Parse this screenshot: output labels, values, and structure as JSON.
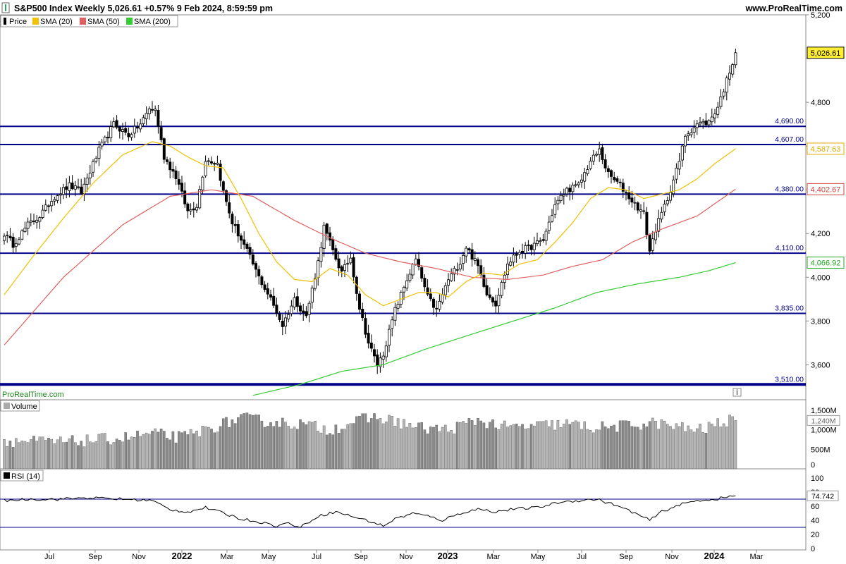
{
  "header": {
    "title": "S&P500 Index Weekly 5,026.61 +0.57% 9 Feb 2024, 8:59:59 pm",
    "site": "www.ProRealTime.com",
    "watermark": "ProRealTime.com"
  },
  "legend": [
    {
      "label": "Price",
      "color": "#000000"
    },
    {
      "label": "SMA (20)",
      "color": "#f5c000"
    },
    {
      "label": "SMA (50)",
      "color": "#e06060"
    },
    {
      "label": "SMA (200)",
      "color": "#33cc33"
    }
  ],
  "panels": {
    "volume_label": "Volume",
    "rsi_label": "RSI (14)"
  },
  "colors": {
    "level_line": "#00008b",
    "sma20": "#f0c000",
    "sma50": "#e06060",
    "sma200": "#33cc33",
    "bull_body": "#ffffff",
    "bear_body": "#000000",
    "volume_bar": "#b4b4b4",
    "volume_bar_dark": "#8a8a8a"
  },
  "chart_data": [
    {
      "type": "candlestick",
      "title": "S&P500 Index Weekly",
      "period": "Weekly",
      "x_tick_labels": [
        "Jul",
        "Sep",
        "Nov",
        "2022",
        "Mar",
        "May",
        "Jul",
        "Sep",
        "Nov",
        "2023",
        "Mar",
        "May",
        "Jul",
        "Sep",
        "Nov",
        "2024",
        "Mar"
      ],
      "x_tick_bold": [
        "2022",
        "2023",
        "2024"
      ],
      "y_ticks": [
        3600,
        3800,
        4000,
        4200,
        4400,
        4600,
        4800,
        5000,
        5200
      ],
      "y_tick_labels": [
        "3,600",
        "3,800",
        "4,000",
        "4,200",
        "",
        "",
        "4,800",
        "",
        "5,200"
      ],
      "ylim": [
        3440,
        5200
      ],
      "horizontal_levels": [
        {
          "value": 4690,
          "label": "4,690.00"
        },
        {
          "value": 4607,
          "label": "4,607.00"
        },
        {
          "value": 4380,
          "label": "4,380.00"
        },
        {
          "value": 4110,
          "label": "4,110.00"
        },
        {
          "value": 3835,
          "label": "3,835.00"
        },
        {
          "value": 3510,
          "label": "3,510.00",
          "thick": true
        }
      ],
      "badges": [
        {
          "value": 5026.61,
          "label": "5,026.61",
          "fill": "#ffee33",
          "color": "#000000"
        },
        {
          "value": 4587.63,
          "label": "4,587.63",
          "fill": "#ffffff",
          "color": "#e0a800"
        },
        {
          "value": 4402.67,
          "label": "4,402.67",
          "fill": "#ffffff",
          "color": "#d04040"
        },
        {
          "value": 4066.92,
          "label": "4,066.92",
          "fill": "#ffffff",
          "color": "#22aa22"
        }
      ],
      "close_anchors": [
        [
          0,
          4200
        ],
        [
          3,
          4150
        ],
        [
          8,
          4240
        ],
        [
          12,
          4280
        ],
        [
          17,
          4370
        ],
        [
          22,
          4420
        ],
        [
          26,
          4390
        ],
        [
          32,
          4580
        ],
        [
          37,
          4700
        ],
        [
          42,
          4650
        ],
        [
          46,
          4700
        ],
        [
          49,
          4770
        ],
        [
          51,
          4766
        ],
        [
          54,
          4550
        ],
        [
          58,
          4460
        ],
        [
          62,
          4300
        ],
        [
          65,
          4330
        ],
        [
          68,
          4540
        ],
        [
          72,
          4520
        ],
        [
          74,
          4390
        ],
        [
          77,
          4250
        ],
        [
          82,
          4120
        ],
        [
          86,
          4000
        ],
        [
          90,
          3900
        ],
        [
          94,
          3780
        ],
        [
          98,
          3900
        ],
        [
          102,
          3820
        ],
        [
          106,
          4070
        ],
        [
          108,
          4230
        ],
        [
          111,
          4120
        ],
        [
          114,
          4020
        ],
        [
          117,
          4090
        ],
        [
          120,
          3860
        ],
        [
          123,
          3700
        ],
        [
          126,
          3600
        ],
        [
          128,
          3650
        ],
        [
          132,
          3850
        ],
        [
          136,
          3990
        ],
        [
          139,
          4080
        ],
        [
          143,
          3910
        ],
        [
          146,
          3850
        ],
        [
          150,
          3990
        ],
        [
          154,
          4070
        ],
        [
          156,
          4140
        ],
        [
          160,
          4050
        ],
        [
          163,
          3930
        ],
        [
          166,
          3880
        ],
        [
          170,
          4060
        ],
        [
          174,
          4120
        ],
        [
          178,
          4140
        ],
        [
          182,
          4170
        ],
        [
          186,
          4330
        ],
        [
          190,
          4400
        ],
        [
          194,
          4420
        ],
        [
          198,
          4530
        ],
        [
          201,
          4580
        ],
        [
          204,
          4470
        ],
        [
          208,
          4420
        ],
        [
          212,
          4350
        ],
        [
          216,
          4290
        ],
        [
          218,
          4120
        ],
        [
          220,
          4220
        ],
        [
          224,
          4360
        ],
        [
          228,
          4530
        ],
        [
          230,
          4650
        ],
        [
          234,
          4700
        ],
        [
          238,
          4710
        ],
        [
          241,
          4780
        ],
        [
          244,
          4900
        ],
        [
          247,
          5026.61
        ]
      ],
      "sma20_anchors": [
        [
          0,
          3920
        ],
        [
          10,
          4100
        ],
        [
          20,
          4270
        ],
        [
          30,
          4430
        ],
        [
          40,
          4560
        ],
        [
          50,
          4620
        ],
        [
          56,
          4600
        ],
        [
          62,
          4550
        ],
        [
          68,
          4510
        ],
        [
          74,
          4500
        ],
        [
          80,
          4360
        ],
        [
          86,
          4200
        ],
        [
          92,
          4070
        ],
        [
          98,
          3990
        ],
        [
          104,
          3980
        ],
        [
          110,
          4040
        ],
        [
          116,
          4010
        ],
        [
          122,
          3920
        ],
        [
          128,
          3870
        ],
        [
          134,
          3900
        ],
        [
          140,
          3930
        ],
        [
          146,
          3930
        ],
        [
          150,
          3910
        ],
        [
          156,
          3980
        ],
        [
          162,
          4020
        ],
        [
          168,
          4010
        ],
        [
          174,
          4060
        ],
        [
          180,
          4080
        ],
        [
          186,
          4160
        ],
        [
          192,
          4250
        ],
        [
          198,
          4360
        ],
        [
          204,
          4410
        ],
        [
          210,
          4400
        ],
        [
          216,
          4360
        ],
        [
          222,
          4380
        ],
        [
          228,
          4400
        ],
        [
          234,
          4450
        ],
        [
          240,
          4520
        ],
        [
          247,
          4587.63
        ]
      ],
      "sma50_anchors": [
        [
          0,
          3690
        ],
        [
          20,
          4000
        ],
        [
          40,
          4240
        ],
        [
          56,
          4370
        ],
        [
          70,
          4400
        ],
        [
          84,
          4370
        ],
        [
          98,
          4260
        ],
        [
          110,
          4180
        ],
        [
          122,
          4110
        ],
        [
          134,
          4070
        ],
        [
          146,
          4040
        ],
        [
          158,
          4000
        ],
        [
          170,
          3990
        ],
        [
          182,
          4010
        ],
        [
          192,
          4050
        ],
        [
          202,
          4080
        ],
        [
          212,
          4160
        ],
        [
          222,
          4220
        ],
        [
          234,
          4280
        ],
        [
          247,
          4402.67
        ]
      ],
      "sma200_anchors": [
        [
          84,
          3460
        ],
        [
          100,
          3510
        ],
        [
          114,
          3570
        ],
        [
          128,
          3600
        ],
        [
          142,
          3670
        ],
        [
          158,
          3740
        ],
        [
          172,
          3800
        ],
        [
          186,
          3860
        ],
        [
          200,
          3930
        ],
        [
          214,
          3970
        ],
        [
          228,
          4000
        ],
        [
          238,
          4030
        ],
        [
          247,
          4066.92
        ]
      ],
      "volume": {
        "ylim": [
          0,
          1500
        ],
        "y_tick_labels": [
          "1,500M",
          "1,000M",
          "500M",
          "0"
        ],
        "y_ticks": [
          1500,
          1000,
          500,
          0
        ],
        "last_value": 1240,
        "last_label": "1,240M",
        "anchors": [
          [
            0,
            720
          ],
          [
            20,
            680
          ],
          [
            40,
            790
          ],
          [
            50,
            900
          ],
          [
            60,
            800
          ],
          [
            70,
            1050
          ],
          [
            80,
            1300
          ],
          [
            90,
            1200
          ],
          [
            100,
            1150
          ],
          [
            110,
            1000
          ],
          [
            120,
            1250
          ],
          [
            126,
            1320
          ],
          [
            134,
            1180
          ],
          [
            140,
            1050
          ],
          [
            150,
            1000
          ],
          [
            160,
            1250
          ],
          [
            170,
            1050
          ],
          [
            180,
            1100
          ],
          [
            190,
            1150
          ],
          [
            200,
            1050
          ],
          [
            210,
            1100
          ],
          [
            220,
            1180
          ],
          [
            228,
            1050
          ],
          [
            236,
            1000
          ],
          [
            242,
            1200
          ],
          [
            247,
            1240
          ]
        ]
      },
      "rsi": {
        "ylim": [
          0,
          100
        ],
        "y_ticks": [
          100,
          80,
          60,
          40,
          20,
          0
        ],
        "y_tick_labels": [
          "100",
          "80",
          "60",
          "40",
          "20",
          "0"
        ],
        "levels": [
          70,
          30
        ],
        "last_value": 74.742,
        "last_label": "74.742",
        "anchors": [
          [
            0,
            68
          ],
          [
            8,
            70
          ],
          [
            18,
            70
          ],
          [
            28,
            72
          ],
          [
            40,
            70
          ],
          [
            50,
            68
          ],
          [
            56,
            55
          ],
          [
            62,
            52
          ],
          [
            68,
            58
          ],
          [
            74,
            50
          ],
          [
            80,
            42
          ],
          [
            86,
            38
          ],
          [
            92,
            32
          ],
          [
            96,
            36
          ],
          [
            100,
            30
          ],
          [
            106,
            46
          ],
          [
            112,
            52
          ],
          [
            118,
            45
          ],
          [
            124,
            38
          ],
          [
            128,
            32
          ],
          [
            132,
            42
          ],
          [
            138,
            50
          ],
          [
            144,
            45
          ],
          [
            148,
            40
          ],
          [
            154,
            50
          ],
          [
            160,
            56
          ],
          [
            166,
            52
          ],
          [
            172,
            56
          ],
          [
            180,
            58
          ],
          [
            188,
            66
          ],
          [
            194,
            68
          ],
          [
            200,
            70
          ],
          [
            206,
            62
          ],
          [
            212,
            52
          ],
          [
            218,
            40
          ],
          [
            222,
            52
          ],
          [
            228,
            62
          ],
          [
            234,
            68
          ],
          [
            240,
            70
          ],
          [
            247,
            74.742
          ]
        ]
      }
    }
  ]
}
